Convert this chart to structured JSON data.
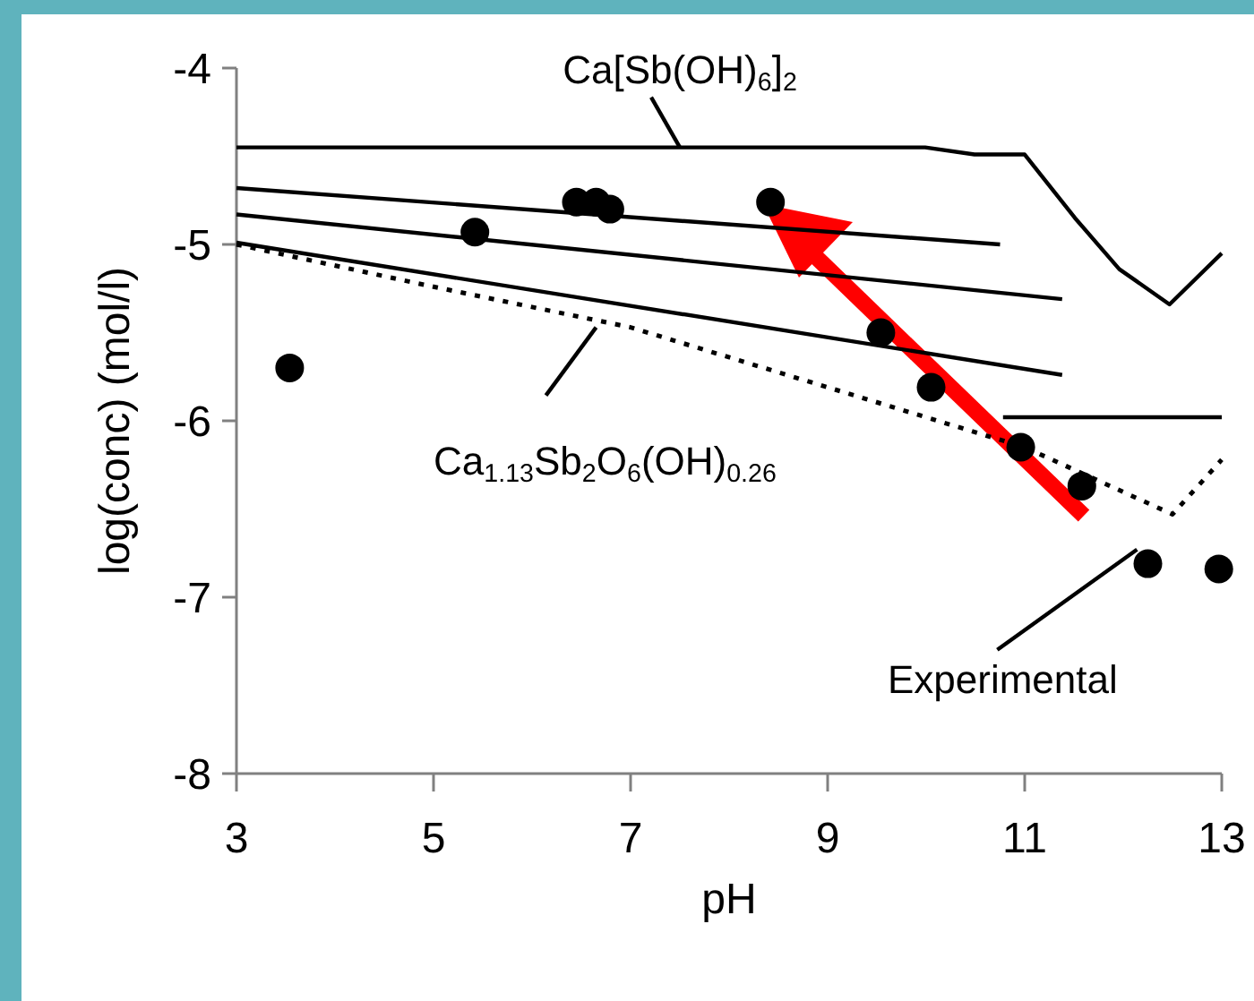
{
  "chart_data": {
    "type": "line",
    "xlabel": "pH",
    "ylabel": "log(conc) (mol/l)",
    "xlim": [
      3,
      13
    ],
    "ylim": [
      -8,
      -4
    ],
    "xticks": [
      3,
      5,
      7,
      9,
      11,
      13
    ],
    "yticks": [
      -8,
      -7,
      -6,
      -5,
      -4
    ],
    "grid": false,
    "series": [
      {
        "color": "#000000",
        "x": [
          3,
          9.99,
          10.49,
          11.0,
          11.51,
          11.96,
          12.47,
          13.0
        ],
        "values": [
          -4.45,
          -4.45,
          -4.49,
          -4.49,
          -4.85,
          -5.14,
          -5.34,
          -5.05
        ]
      },
      {
        "color": "#000000",
        "x": [
          3,
          10.75
        ],
        "values": [
          -4.68,
          -5.0
        ]
      },
      {
        "color": "#000000",
        "x": [
          3,
          11.38
        ],
        "values": [
          -4.83,
          -5.31
        ]
      },
      {
        "color": "#000000",
        "x": [
          3,
          11.38
        ],
        "values": [
          -4.99,
          -5.74
        ]
      },
      {
        "color": "#000000",
        "x": [
          10.78,
          13
        ],
        "values": [
          -5.98,
          -5.98
        ]
      },
      {
        "color": "#000000",
        "line_style": "dashed",
        "x": [
          3,
          5,
          7,
          9,
          11,
          12.5,
          13
        ],
        "values": [
          -5.0,
          -5.24,
          -5.47,
          -5.81,
          -6.15,
          -6.53,
          -6.22
        ]
      },
      {
        "type": "scatter",
        "color": "#000000",
        "marker": "circle",
        "x": [
          3.54,
          5.42,
          6.45,
          6.65,
          6.79,
          8.42,
          9.54,
          10.05,
          10.96,
          11.58,
          12.25,
          12.97
        ],
        "values": [
          -5.7,
          -4.93,
          -4.76,
          -4.76,
          -4.8,
          -4.76,
          -5.5,
          -5.81,
          -6.15,
          -6.37,
          -6.81,
          -6.84
        ]
      }
    ],
    "annotations": [
      {
        "text": "Ca[Sb(OH)$_{6}$]$_{2}$",
        "x": 7.5,
        "y": -4.45
      },
      {
        "text": "Ca$_{1.13}$Sb$_{2}$O$_{6}$(OH)$_{0.26}$",
        "x": 6.65,
        "y": -5.47
      },
      {
        "text": "Experimental",
        "x": 12.14,
        "y": -6.73
      }
    ]
  }
}
